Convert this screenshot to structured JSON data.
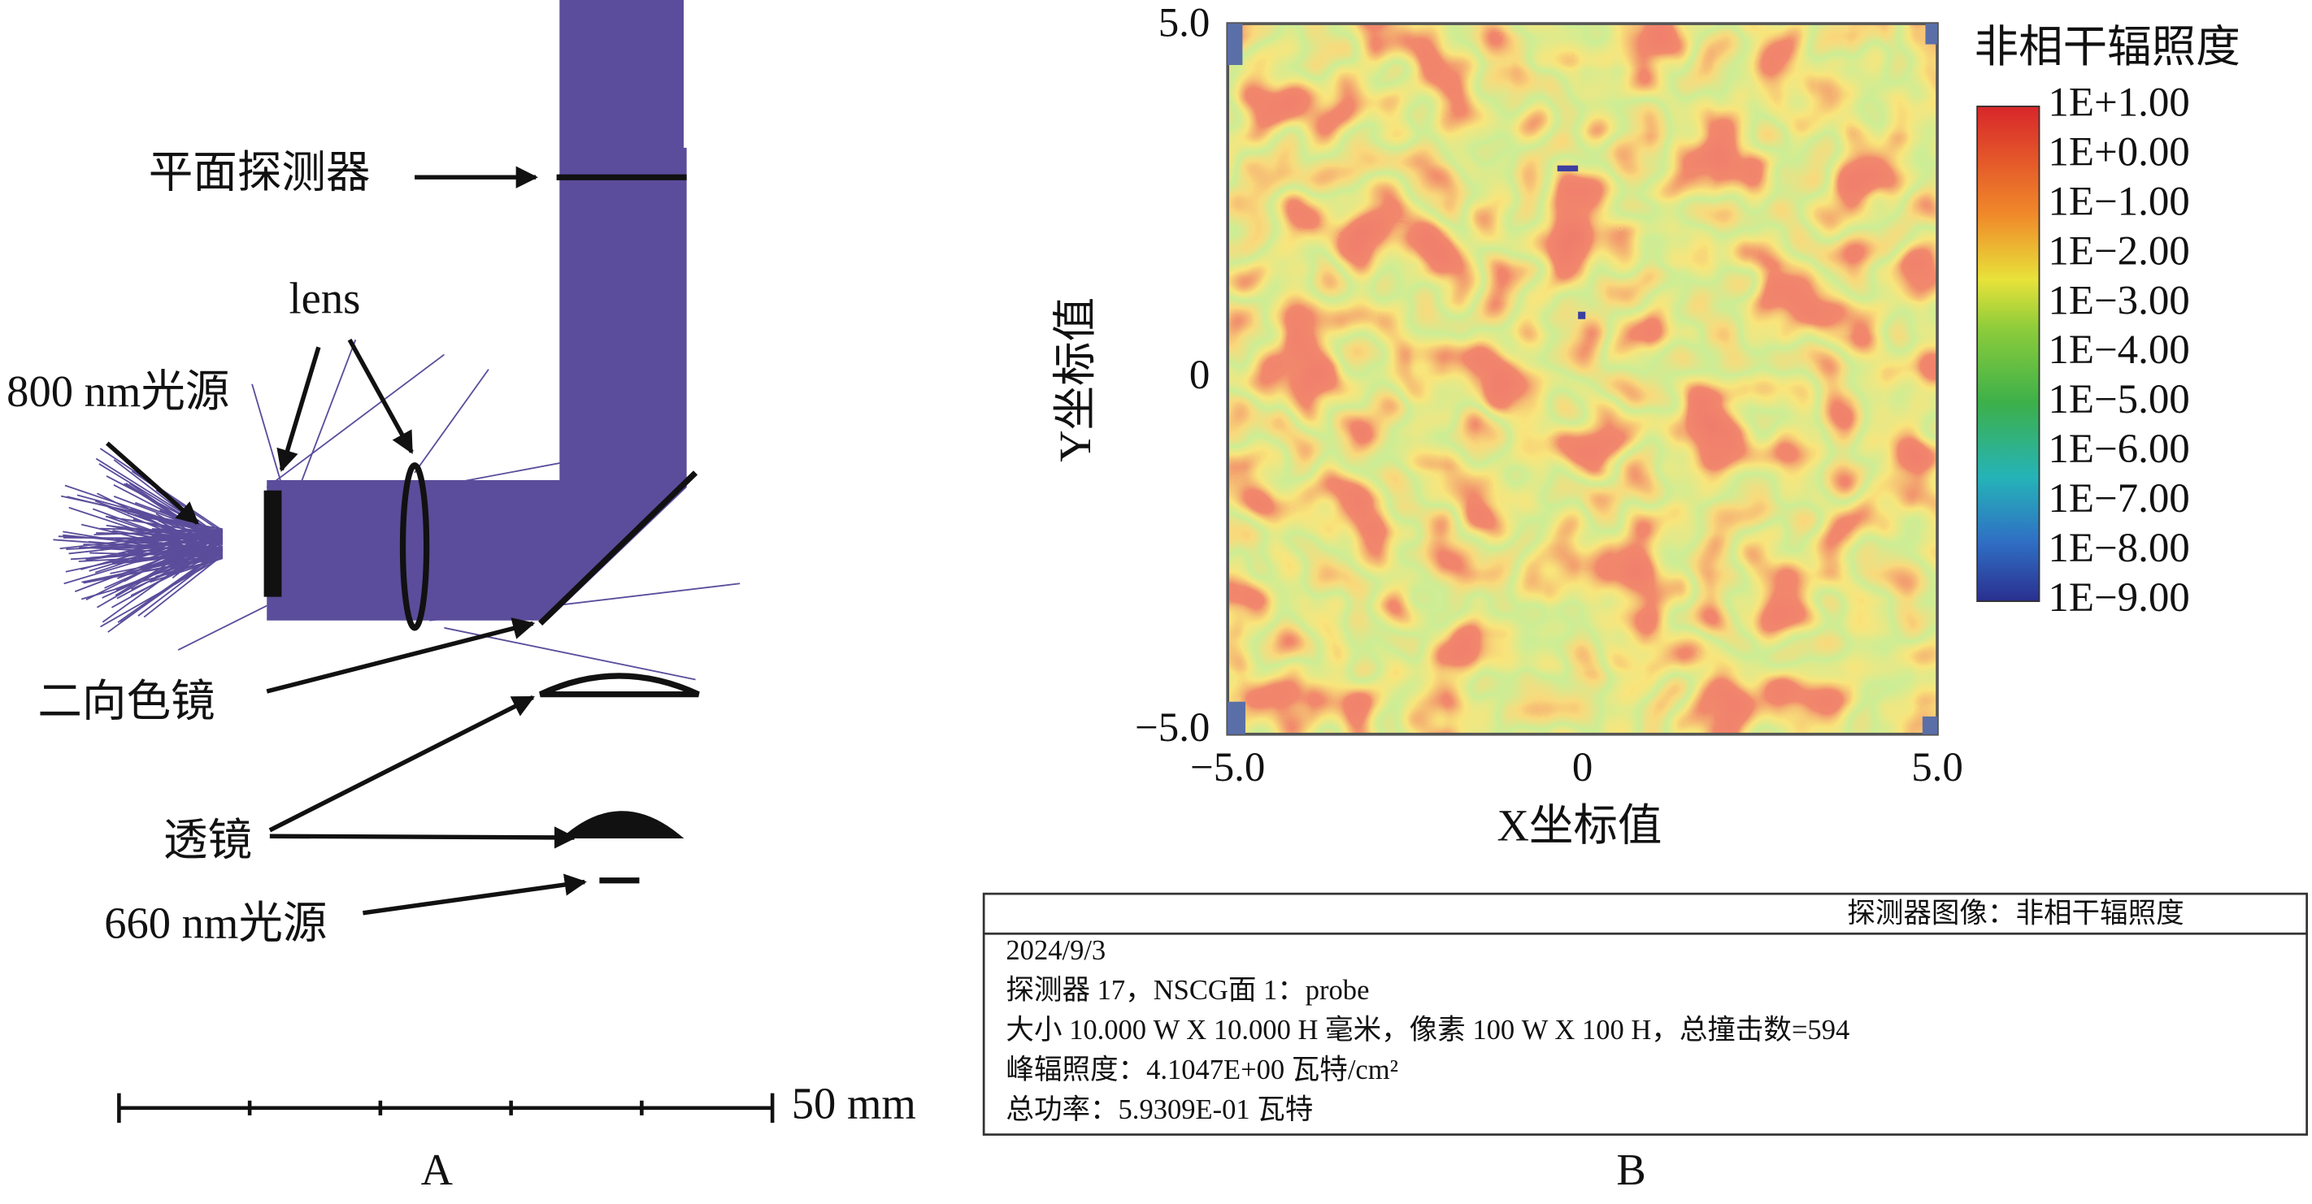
{
  "panel_a": {
    "callouts": [
      "平面探测器",
      "lens",
      "800 nm光源",
      "二向色镜",
      "透镜",
      "660 nm光源"
    ],
    "scale_bar": "50 mm",
    "caption": "A"
  },
  "panel_b": {
    "y_axis": {
      "label": "Y坐标值",
      "ticks": [
        "5.0",
        "0",
        "−5.0"
      ]
    },
    "x_axis": {
      "label": "X坐标值",
      "ticks": [
        "−5.0",
        "0",
        "5.0"
      ]
    },
    "colorbar": {
      "title": "非相干辐照度",
      "labels": [
        "1E+1.00",
        "1E+0.00",
        "1E−1.00",
        "1E−2.00",
        "1E−3.00",
        "1E−4.00",
        "1E−5.00",
        "1E−6.00",
        "1E−7.00",
        "1E−8.00",
        "1E−9.00"
      ]
    },
    "info_box": {
      "header": "探测器图像：非相干辐照度",
      "lines": [
        "2024/9/3",
        "探测器 17，NSCG面 1：probe",
        "大小 10.000 W X 10.000 H 毫米，像素 100 W X 100 H，总撞击数=594",
        "峰辐照度：4.1047E+00 瓦特/cm²",
        "总功率：5.9309E-01 瓦特"
      ]
    },
    "caption": "B"
  }
}
